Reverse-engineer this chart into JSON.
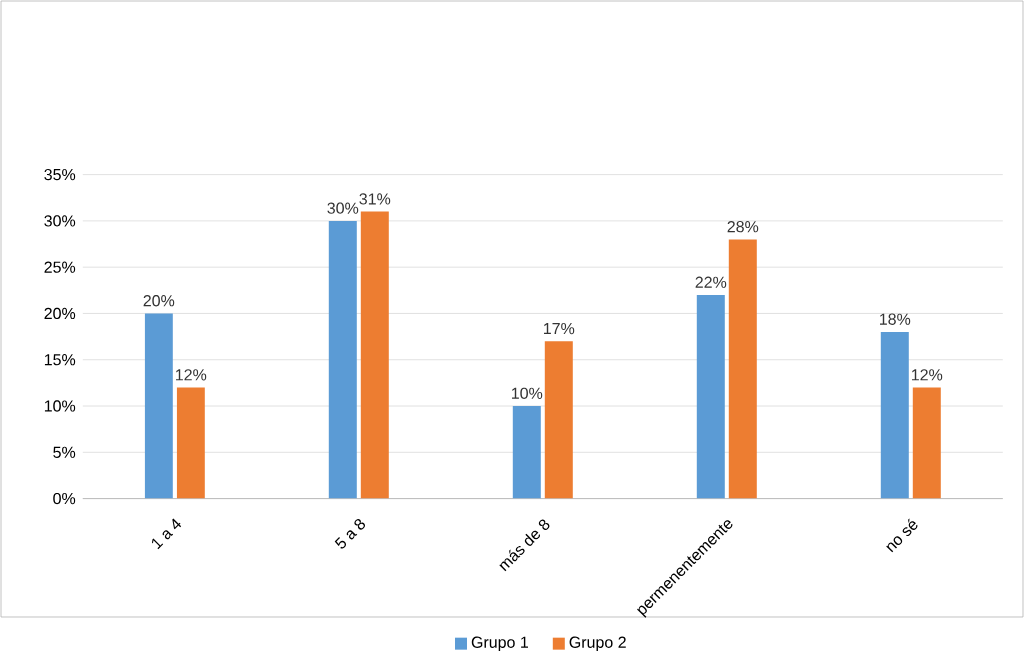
{
  "chart_data": {
    "type": "bar",
    "categories": [
      "1 a 4",
      "5 a 8",
      "más de 8",
      "permenentemente",
      "no sé"
    ],
    "series": [
      {
        "name": "Grupo 1",
        "color": "#5b9bd5",
        "values": [
          20,
          30,
          10,
          22,
          18
        ],
        "value_labels": [
          "20%",
          "30%",
          "10%",
          "22%",
          "18%"
        ]
      },
      {
        "name": "Grupo 2",
        "color": "#ed7d31",
        "values": [
          12,
          31,
          17,
          28,
          12
        ],
        "value_labels": [
          "12%",
          "31%",
          "17%",
          "28%",
          "12%"
        ]
      }
    ],
    "ylim": [
      0,
      35
    ],
    "yticks": [
      {
        "value": 0,
        "label": "0%"
      },
      {
        "value": 5,
        "label": "5%"
      },
      {
        "value": 10,
        "label": "10%"
      },
      {
        "value": 15,
        "label": "15%"
      },
      {
        "value": 20,
        "label": "20%"
      },
      {
        "value": 25,
        "label": "25%"
      },
      {
        "value": 30,
        "label": "30%"
      },
      {
        "value": 35,
        "label": "35%"
      }
    ],
    "grid": "y",
    "legend": "bottom"
  }
}
